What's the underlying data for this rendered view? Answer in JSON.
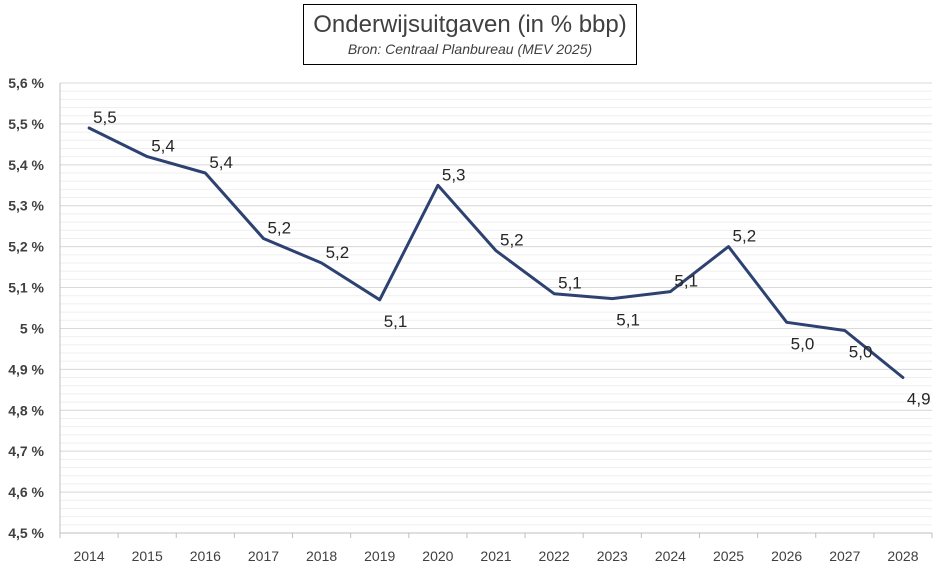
{
  "chart_data": {
    "type": "line",
    "title": "Onderwijsuitgaven (in % bbp)",
    "subtitle": "Bron: Centraal Planbureau (MEV 2025)",
    "x": [
      "2014",
      "2015",
      "2016",
      "2017",
      "2018",
      "2019",
      "2020",
      "2021",
      "2022",
      "2023",
      "2024",
      "2025",
      "2026",
      "2027",
      "2028"
    ],
    "series": [
      {
        "values": [
          5.49,
          5.42,
          5.38,
          5.22,
          5.16,
          5.07,
          5.35,
          5.19,
          5.085,
          5.073,
          5.09,
          5.2,
          5.015,
          4.995,
          4.88
        ],
        "labels": [
          "5,5",
          "5,4",
          "5,4",
          "5,2",
          "5,2",
          "5,1",
          "5,3",
          "5,2",
          "5,1",
          "5,1",
          "5,1",
          "5,2",
          "5,0",
          "5,0",
          "4,9"
        ],
        "color": "#2e4272"
      }
    ],
    "ylim": [
      4.5,
      5.6
    ],
    "yticks": [
      {
        "value": 5.6,
        "label": "5,6 %"
      },
      {
        "value": 5.5,
        "label": "5,5 %"
      },
      {
        "value": 5.4,
        "label": "5,4 %"
      },
      {
        "value": 5.3,
        "label": "5,3 %"
      },
      {
        "value": 5.2,
        "label": "5,2 %"
      },
      {
        "value": 5.1,
        "label": "5,1 %"
      },
      {
        "value": 5.0,
        "label": "5 %"
      },
      {
        "value": 4.9,
        "label": "4,9 %"
      },
      {
        "value": 4.8,
        "label": "4,8 %"
      },
      {
        "value": 4.7,
        "label": "4,7 %"
      },
      {
        "value": 4.6,
        "label": "4,6 %"
      },
      {
        "value": 4.5,
        "label": "4,5 %"
      }
    ],
    "grid": true,
    "legend": "none"
  },
  "colors": {
    "line": "#2e4272",
    "major_grid": "#d9d9d9",
    "minor_grid": "#efefef",
    "axis": "#bfbfbf"
  }
}
